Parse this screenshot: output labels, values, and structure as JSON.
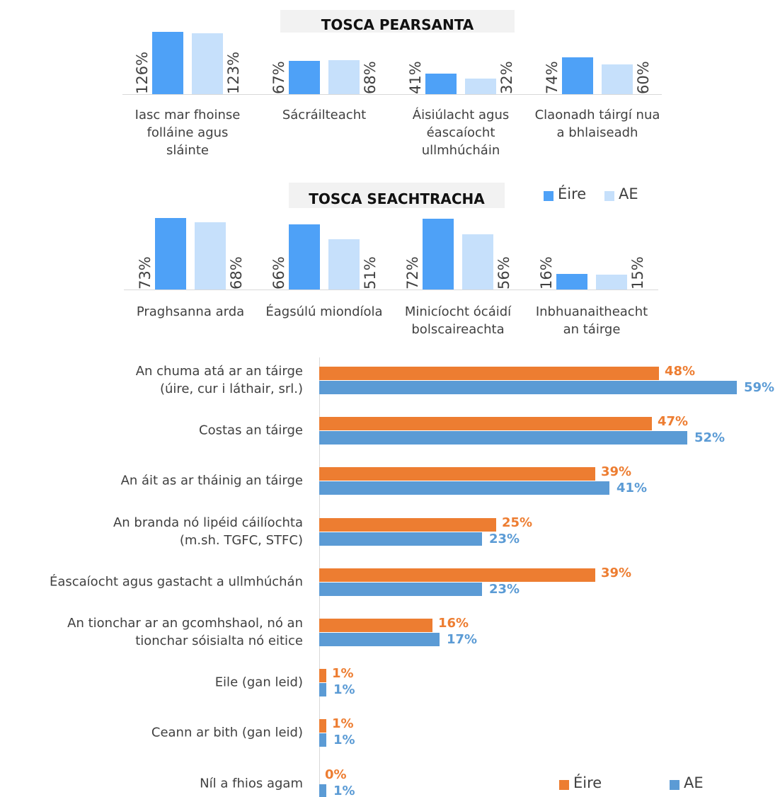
{
  "chart_data": [
    {
      "type": "bar",
      "title": "TOSCA PEARSANTA",
      "categories": [
        "Iasc mar fhoinse\nfolláine agus\nsláinte",
        "Sácráilteacht",
        "Áisiúlacht agus\néascaíocht\nullmhúcháin",
        "Claonadh táirgí nua\na bhlaiseadh"
      ],
      "series": [
        {
          "color": "#4ea1f7",
          "values": [
            126,
            67,
            41,
            74
          ],
          "value_labels": [
            "126%",
            "67%",
            "41%",
            "74%"
          ]
        },
        {
          "color": "#c6e0fb",
          "values": [
            123,
            68,
            32,
            60
          ],
          "value_labels": [
            "123%",
            "68%",
            "32%",
            "60%"
          ]
        }
      ]
    },
    {
      "type": "bar",
      "title": "TOSCA SEACHTRACHA",
      "legend": "upper right",
      "categories": [
        "Praghsanna arda",
        "Éagsúlú miondíola",
        "Minicíocht ócáidí\nbolscaireachta",
        "Inbhuanaitheacht\nan táirge"
      ],
      "series": [
        {
          "name": "Éire",
          "color": "#4ea1f7",
          "values": [
            73,
            66,
            72,
            16
          ],
          "value_labels": [
            "73%",
            "66%",
            "72%",
            "16%"
          ]
        },
        {
          "name": "AE",
          "color": "#c6e0fb",
          "values": [
            68,
            51,
            56,
            15
          ],
          "value_labels": [
            "68%",
            "51%",
            "56%",
            "15%"
          ]
        }
      ]
    },
    {
      "type": "hbar",
      "legend": "lower right",
      "categories": [
        "An chuma atá ar an táirge\n(úire, cur i láthair, srl.)",
        "Costas an táirge",
        "An áit as ar tháinig an táirge",
        "An branda nó lipéid cáilíochta\n(m.sh. TGFC, STFC)",
        "Éascaíocht agus gastacht a ullmhúchán",
        "An tionchar ar an gcomhshaol, nó an\ntionchar sóisialta nó eitice",
        "Eile (gan leid)",
        "Ceann ar bith (gan leid)",
        "Níl a fhios agam"
      ],
      "series": [
        {
          "name": "Éire",
          "color": "#ed7d31",
          "values": [
            48,
            47,
            39,
            25,
            39,
            16,
            1,
            1,
            0
          ],
          "value_labels": [
            "48%",
            "47%",
            "39%",
            "25%",
            "39%",
            "16%",
            "1%",
            "1%",
            "0%"
          ]
        },
        {
          "name": "AE",
          "color": "#5b9bd5",
          "values": [
            59,
            52,
            41,
            23,
            23,
            17,
            1,
            1,
            1
          ],
          "value_labels": [
            "59%",
            "52%",
            "41%",
            "23%",
            "23%",
            "17%",
            "1%",
            "1%",
            "1%"
          ]
        }
      ]
    }
  ]
}
